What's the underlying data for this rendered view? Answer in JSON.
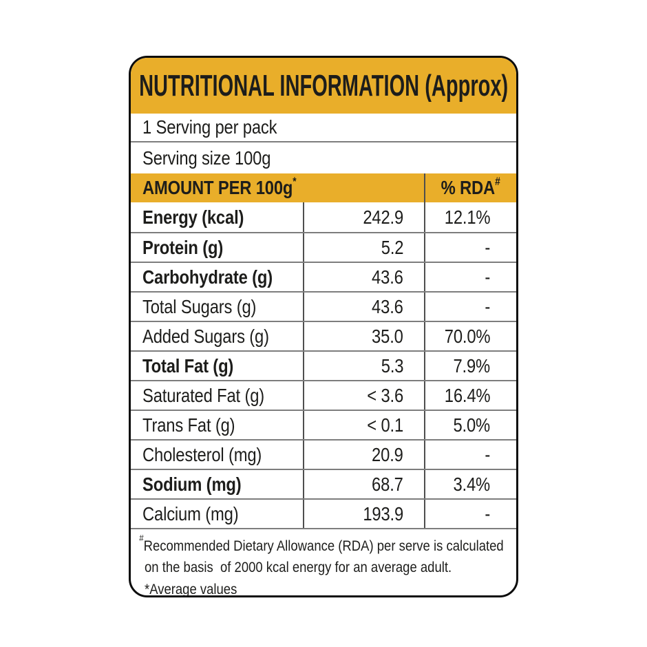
{
  "label": {
    "title": "NUTRITIONAL INFORMATION (Approx)",
    "serving_info": {
      "line1": "1 Serving per pack",
      "line2": "Serving size 100g"
    },
    "table_header": {
      "amount_label": "AMOUNT PER 100g",
      "amount_superscript": "*",
      "rda_label": "% RDA",
      "rda_superscript": "#"
    },
    "rows": [
      {
        "name": "Energy (kcal)",
        "value": "242.9",
        "rda": "12.1%",
        "emphasis": true
      },
      {
        "name": "Protein (g)",
        "value": "5.2",
        "rda": "-",
        "emphasis": true
      },
      {
        "name": "Carbohydrate (g)",
        "value": "43.6",
        "rda": "-",
        "emphasis": true
      },
      {
        "name": "Total Sugars (g)",
        "value": "43.6",
        "rda": "-",
        "emphasis": false
      },
      {
        "name": "Added Sugars (g)",
        "value": "35.0",
        "rda": "70.0%",
        "emphasis": false
      },
      {
        "name": "Total Fat (g)",
        "value": "5.3",
        "rda": "7.9%",
        "emphasis": true
      },
      {
        "name": "Saturated Fat (g)",
        "value": "< 3.6",
        "rda": "16.4%",
        "emphasis": false
      },
      {
        "name": "Trans Fat (g)",
        "value": "< 0.1",
        "rda": "5.0%",
        "emphasis": false
      },
      {
        "name": "Cholesterol (mg)",
        "value": "20.9",
        "rda": "-",
        "emphasis": false
      },
      {
        "name": "Sodium (mg)",
        "value": "68.7",
        "rda": "3.4%",
        "emphasis": true
      },
      {
        "name": "Calcium (mg)",
        "value": "193.9",
        "rda": "-",
        "emphasis": false
      }
    ],
    "footnote": {
      "hash_symbol": "#",
      "line1": "Recommended Dietary Allowance (RDA) per serve is calculated",
      "line2": "on the basis  of 2000 kcal energy for an average adult.",
      "line3": "*Average values"
    },
    "colors": {
      "accent_yellow": "#e9ae2a",
      "text": "#1d1d1b",
      "outer_border": "#0b0b0b",
      "grid_line": "#7d7d7d"
    }
  }
}
